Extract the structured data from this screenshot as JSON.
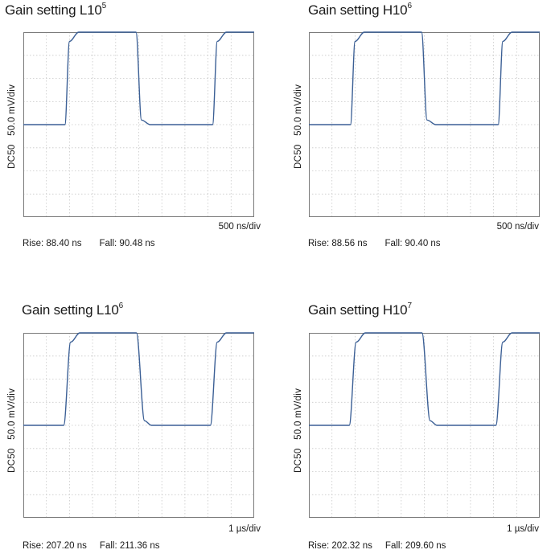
{
  "chart_data": [
    {
      "type": "line",
      "title_main": "Gain setting L10",
      "title_exp": "5",
      "y_units": "50.0 mV/div",
      "coupling": "DC50",
      "x_units": "500 ns/div",
      "rise": "Rise: 88.40 ns",
      "fall": "Fall: 90.48 ns",
      "grid": true,
      "divisions": {
        "x": 10,
        "y": 8
      },
      "xlim": [
        0,
        5000
      ],
      "ylim": [
        -250,
        150
      ],
      "x_unit": "ns",
      "y_unit": "mV",
      "series": [
        {
          "x": [
            0,
            900,
            1000,
            1200,
            2440,
            2560,
            2750,
            4100,
            4200,
            4400,
            5000
          ],
          "y": [
            -50,
            -50,
            130,
            150,
            150,
            -40,
            -50,
            -50,
            130,
            150,
            150
          ]
        }
      ]
    },
    {
      "type": "line",
      "title_main": "Gain setting H10",
      "title_exp": "6",
      "y_units": "50.0 mV/div",
      "coupling": "DC50",
      "x_units": "500 ns/div",
      "rise": "Rise: 88.56 ns",
      "fall": "Fall: 90.40 ns",
      "grid": true,
      "divisions": {
        "x": 10,
        "y": 8
      },
      "xlim": [
        0,
        5000
      ],
      "ylim": [
        -250,
        150
      ],
      "x_unit": "ns",
      "y_unit": "mV",
      "series": [
        {
          "x": [
            0,
            900,
            1000,
            1200,
            2440,
            2560,
            2750,
            4100,
            4200,
            4400,
            5000
          ],
          "y": [
            -50,
            -50,
            130,
            150,
            150,
            -40,
            -50,
            -50,
            130,
            150,
            150
          ]
        }
      ]
    },
    {
      "type": "line",
      "title_main": "Gain setting L10",
      "title_exp": "6",
      "y_units": "50.0 mV/div",
      "coupling": "DC50",
      "x_units": "1 µs/div",
      "rise": "Rise: 207.20 ns",
      "fall": "Fall: 211.36 ns",
      "grid": true,
      "divisions": {
        "x": 10,
        "y": 8
      },
      "xlim": [
        0,
        10
      ],
      "ylim": [
        -250,
        150
      ],
      "x_unit": "µs",
      "y_unit": "mV",
      "series": [
        {
          "x": [
            0,
            1.75,
            2.05,
            2.45,
            4.9,
            5.25,
            5.55,
            8.1,
            8.4,
            8.8,
            10
          ],
          "y": [
            -50,
            -50,
            130,
            150,
            150,
            -40,
            -50,
            -50,
            130,
            150,
            150
          ]
        }
      ]
    },
    {
      "type": "line",
      "title_main": "Gain setting H10",
      "title_exp": "7",
      "y_units": "50.0 mV/div",
      "coupling": "DC50",
      "x_units": "1 µs/div",
      "rise": "Rise: 202.32 ns",
      "fall": "Fall: 209.60 ns",
      "grid": true,
      "divisions": {
        "x": 10,
        "y": 8
      },
      "xlim": [
        0,
        10
      ],
      "ylim": [
        -250,
        150
      ],
      "x_unit": "µs",
      "y_unit": "mV",
      "series": [
        {
          "x": [
            0,
            1.75,
            2.05,
            2.45,
            4.9,
            5.25,
            5.55,
            8.1,
            8.4,
            8.8,
            10
          ],
          "y": [
            -50,
            -50,
            130,
            150,
            150,
            -40,
            -50,
            -50,
            130,
            150,
            150
          ]
        }
      ]
    }
  ],
  "colors": {
    "trace": "#3b5f95",
    "grid": "#c8c8c8",
    "frame": "#7a7a7a"
  }
}
